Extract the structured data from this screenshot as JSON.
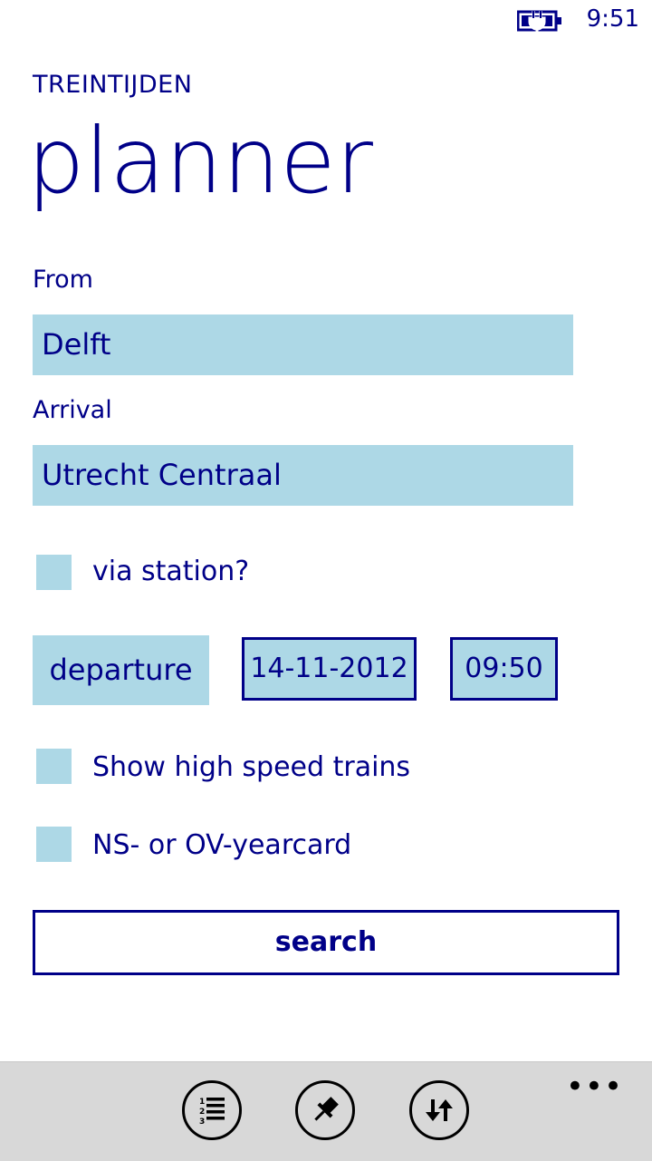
{
  "status_bar": {
    "time": "9:51",
    "battery_icon": "battery-charging-icon"
  },
  "header": {
    "app_name": "TREINTIJDEN",
    "title": "planner"
  },
  "form": {
    "from_label": "From",
    "from_value": "Delft",
    "arrival_label": "Arrival",
    "arrival_value": "Utrecht Centraal",
    "via_label": "via station?",
    "mode_button": "departure",
    "date": "14-11-2012",
    "time": "09:50",
    "high_speed_label": "Show high speed trains",
    "yearcard_label": "NS- or OV-yearcard",
    "search_label": "search"
  },
  "app_bar": {
    "icons": [
      "list-icon",
      "pin-icon",
      "swap-icon"
    ],
    "more": "•••"
  },
  "colors": {
    "accent": "#000088",
    "field_bg": "#ADD8E6",
    "app_bar_bg": "#d8d8d8"
  }
}
